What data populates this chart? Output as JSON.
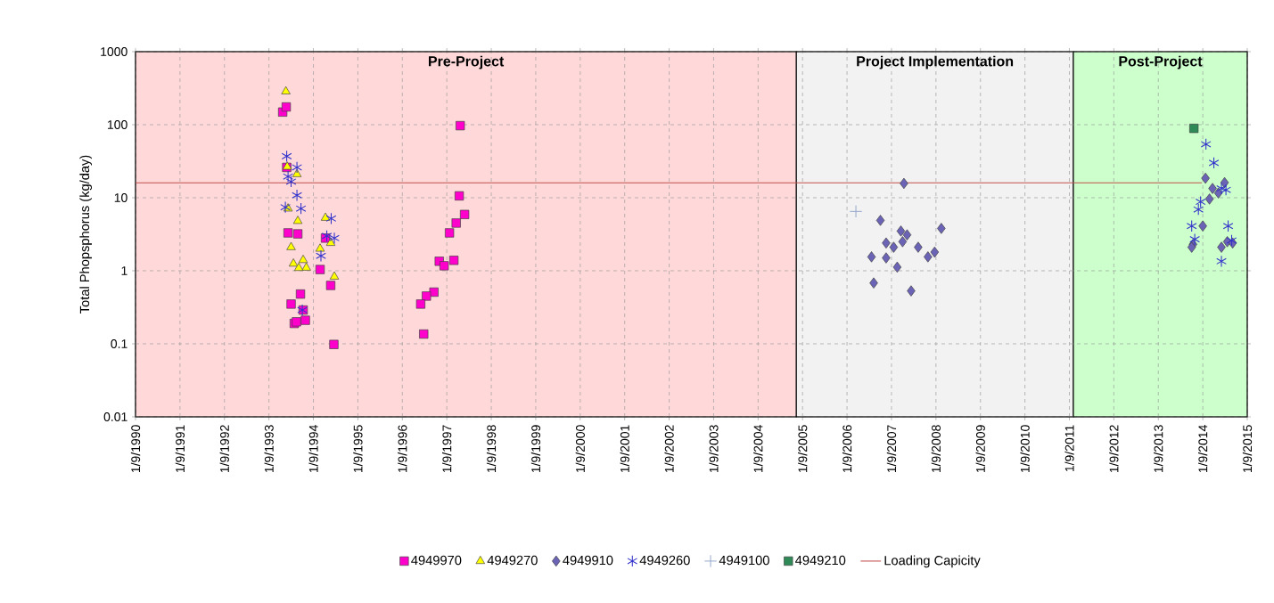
{
  "chart_data": {
    "type": "scatter",
    "ylabel": "Total Phopsphorus (kg/day)",
    "log": "y",
    "grid": true,
    "legend": "bottom",
    "xlim": [
      "1990-01-09",
      "2015-01-09"
    ],
    "ylim": [
      0.01,
      1000
    ],
    "xticks": [
      {
        "value": "1990-01-09",
        "label": "1/9/1990"
      },
      {
        "value": "1991-01-09",
        "label": "1/9/1991"
      },
      {
        "value": "1992-01-09",
        "label": "1/9/1992"
      },
      {
        "value": "1993-01-09",
        "label": "1/9/1993"
      },
      {
        "value": "1994-01-09",
        "label": "1/9/1994"
      },
      {
        "value": "1995-01-09",
        "label": "1/9/1995"
      },
      {
        "value": "1996-01-09",
        "label": "1/9/1996"
      },
      {
        "value": "1997-01-09",
        "label": "1/9/1997"
      },
      {
        "value": "1998-01-09",
        "label": "1/9/1998"
      },
      {
        "value": "1999-01-09",
        "label": "1/9/1999"
      },
      {
        "value": "2000-01-09",
        "label": "1/9/2000"
      },
      {
        "value": "2001-01-09",
        "label": "1/9/2001"
      },
      {
        "value": "2002-01-09",
        "label": "1/9/2002"
      },
      {
        "value": "2003-01-09",
        "label": "1/9/2003"
      },
      {
        "value": "2004-01-09",
        "label": "1/9/2004"
      },
      {
        "value": "2005-01-09",
        "label": "1/9/2005"
      },
      {
        "value": "2006-01-09",
        "label": "1/9/2006"
      },
      {
        "value": "2007-01-09",
        "label": "1/9/2007"
      },
      {
        "value": "2008-01-09",
        "label": "1/9/2008"
      },
      {
        "value": "2009-01-09",
        "label": "1/9/2009"
      },
      {
        "value": "2010-01-09",
        "label": "1/9/2010"
      },
      {
        "value": "2011-01-09",
        "label": "1/9/2011"
      },
      {
        "value": "2012-01-09",
        "label": "1/9/2012"
      },
      {
        "value": "2013-01-09",
        "label": "1/9/2013"
      },
      {
        "value": "2014-01-09",
        "label": "1/9/2014"
      },
      {
        "value": "2015-01-09",
        "label": "1/9/2015"
      }
    ],
    "yticks": [
      0.01,
      0.1,
      1,
      10,
      100,
      1000
    ],
    "bands": [
      {
        "axis": "x",
        "from": "1990-01-09",
        "to": "2004-11-19",
        "label": "Pre-Project",
        "color": "#ffd9d9"
      },
      {
        "axis": "x",
        "from": "2004-11-19",
        "to": "2011-02-11",
        "label": "Project Implementation",
        "color": "#f2f2f2"
      },
      {
        "axis": "x",
        "from": "2011-02-11",
        "to": "2015-01-09",
        "label": "Post-Project",
        "color": "#ccffcc"
      }
    ],
    "series": [
      {
        "name": "4949970",
        "marker": "square",
        "color": "#ff00cc",
        "x": [
          "1993-05-02",
          "1993-05-31",
          "1993-06-04",
          "1993-06-15",
          "1993-09-03",
          "1993-09-25",
          "1993-07-10",
          "1993-10-17",
          "1993-08-05",
          "1993-08-23",
          "1993-11-04",
          "1994-03-05",
          "1994-04-18",
          "1994-05-31",
          "1994-06-26",
          "1997-04-29",
          "1997-04-21",
          "1997-06-04",
          "1997-03-27",
          "1997-01-31",
          "1996-11-08",
          "1996-12-18",
          "1997-03-08",
          "1996-09-25",
          "1996-07-25",
          "1996-06-08",
          "1996-07-03"
        ],
        "values": [
          149,
          175,
          26,
          3.3,
          3.2,
          0.48,
          0.35,
          0.29,
          0.19,
          0.2,
          0.21,
          1.04,
          2.8,
          0.63,
          0.098,
          97,
          10.6,
          5.9,
          4.5,
          3.3,
          1.35,
          1.17,
          1.39,
          0.51,
          0.45,
          0.35,
          0.136
        ]
      },
      {
        "name": "4949270",
        "marker": "triangle",
        "color": "#ffff00",
        "x": [
          "1993-05-28",
          "1993-06-08",
          "1993-08-27",
          "1993-06-15",
          "1993-09-03",
          "1993-07-10",
          "1993-07-29",
          "1993-10-17",
          "1993-11-12",
          "1993-09-11",
          "1994-04-18",
          "1994-05-31",
          "1994-03-05",
          "1994-06-30"
        ],
        "values": [
          285,
          26.5,
          21,
          7.1,
          4.8,
          2.1,
          1.25,
          1.4,
          1.1,
          1.09,
          5.3,
          2.4,
          2.0,
          0.83
        ]
      },
      {
        "name": "4949910",
        "marker": "diamond",
        "color": "#6b63b5",
        "x": [
          "2007-04-21",
          "2006-10-10",
          "2008-02-22",
          "2007-03-27",
          "2007-05-17",
          "2007-04-10",
          "2006-11-26",
          "2007-01-27",
          "2007-08-16",
          "2006-07-29",
          "2006-11-26",
          "2007-11-04",
          "2007-12-29",
          "2007-02-25",
          "2006-08-16",
          "2007-06-19",
          "2014-01-31",
          "2014-07-07",
          "2014-03-30",
          "2014-05-17",
          "2014-03-05",
          "2014-01-09",
          "2013-10-21",
          "2013-10-10",
          "2014-06-11",
          "2014-07-29",
          "2014-09-11"
        ],
        "values": [
          15.7,
          4.9,
          3.8,
          3.5,
          3.1,
          2.5,
          2.4,
          2.1,
          2.1,
          1.55,
          1.5,
          1.55,
          1.8,
          1.12,
          0.68,
          0.53,
          18.5,
          16.1,
          13.4,
          11.6,
          9.6,
          4.1,
          2.3,
          2.1,
          2.1,
          2.5,
          2.4
        ]
      },
      {
        "name": "4949260",
        "color": "#3333cc",
        "x": [
          "1993-06-04",
          "1993-08-27",
          "1993-06-15",
          "1993-07-10",
          "1993-08-27",
          "1993-05-24",
          "1993-09-29",
          "1993-10-10",
          "1994-06-04",
          "1994-04-29",
          "1994-06-30",
          "1994-03-12",
          "2014-02-04",
          "2014-04-10",
          "2014-06-11",
          "2014-07-18",
          "2013-12-22",
          "2013-12-04",
          "2013-10-10",
          "2014-08-05",
          "2013-11-04",
          "2014-09-03",
          "2014-06-11"
        ],
        "values": [
          37,
          26,
          19.5,
          16.6,
          10.8,
          7.4,
          7.1,
          0.29,
          5.2,
          3.0,
          2.8,
          1.6,
          54,
          30,
          13.4,
          12.8,
          8.8,
          6.9,
          4.1,
          4.1,
          2.7,
          2.6,
          1.35
        ]
      },
      {
        "name": "4949100",
        "marker": "cross",
        "color": "#8fa3c8",
        "x": [
          "2006-03-23"
        ],
        "values": [
          6.5
        ]
      },
      {
        "name": "4949210",
        "marker": "square",
        "color": "#2e8b57",
        "x": [
          "2013-10-28"
        ],
        "values": [
          89
        ]
      },
      {
        "name": "Loading Capicity",
        "type": "line",
        "marker": "none",
        "color": "#c0504d",
        "x": [
          "1990-01-09",
          "2014-01-02"
        ],
        "values": [
          16,
          16
        ]
      }
    ]
  }
}
